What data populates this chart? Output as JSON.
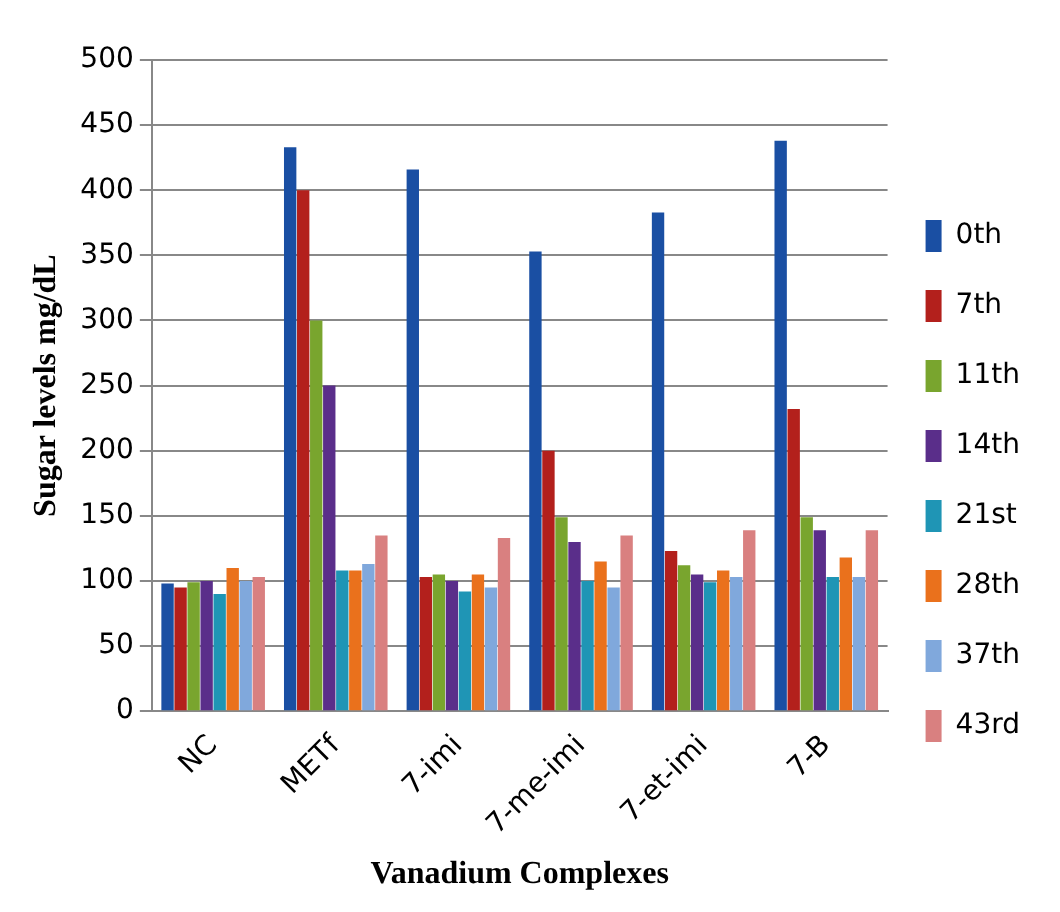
{
  "chart_data": {
    "type": "bar",
    "xlabel": "Vanadium Complexes",
    "ylabel": "Sugar levels mg/dL",
    "categories": [
      "NC",
      "METf",
      "7-imi",
      "7-me-imi",
      "7-et-imi",
      "7-B"
    ],
    "series": [
      {
        "name": "0th",
        "color": "#1a4fa3",
        "values": [
          98,
          433,
          416,
          353,
          383,
          438
        ]
      },
      {
        "name": "7th",
        "color": "#b3201c",
        "values": [
          95,
          400,
          103,
          200,
          123,
          232
        ]
      },
      {
        "name": "11th",
        "color": "#79a52e",
        "values": [
          99,
          300,
          105,
          149,
          112,
          149
        ]
      },
      {
        "name": "14th",
        "color": "#5a2e8a",
        "values": [
          100,
          250,
          100,
          130,
          105,
          139
        ]
      },
      {
        "name": "21st",
        "color": "#1f95b5",
        "values": [
          90,
          108,
          92,
          100,
          99,
          103
        ]
      },
      {
        "name": "28th",
        "color": "#ea711c",
        "values": [
          110,
          108,
          105,
          115,
          108,
          118
        ]
      },
      {
        "name": "37th",
        "color": "#80a8dc",
        "values": [
          100,
          113,
          95,
          95,
          103,
          103
        ]
      },
      {
        "name": "43rd",
        "color": "#d98080",
        "values": [
          103,
          135,
          133,
          135,
          139,
          139
        ]
      }
    ],
    "ylim": [
      0,
      500
    ],
    "yticks": [
      0,
      50,
      100,
      150,
      200,
      250,
      300,
      350,
      400,
      450,
      500
    ],
    "grid": "y",
    "legend": "right"
  }
}
